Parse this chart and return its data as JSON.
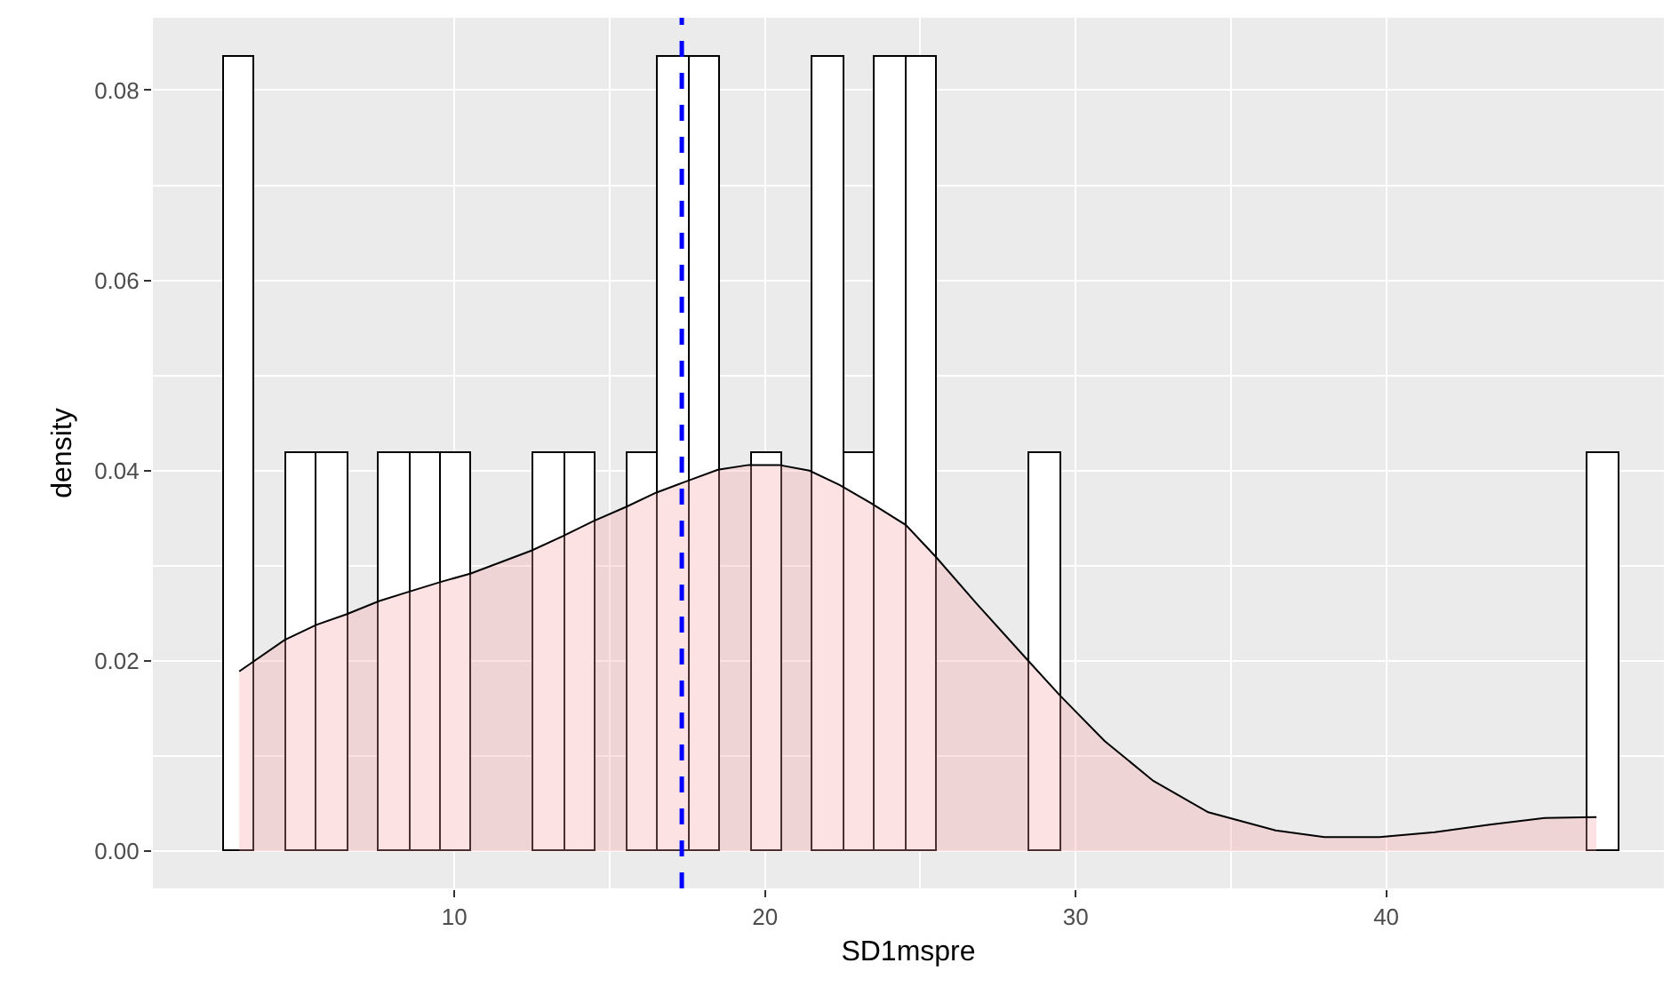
{
  "chart_data": {
    "type": "histogram",
    "xlabel": "SD1mspre",
    "ylabel": "density",
    "xlim": [
      0.29,
      48.94
    ],
    "ylim": [
      -0.0039,
      0.0876
    ],
    "xticks": [
      10,
      20,
      30,
      40
    ],
    "yticks": [
      {
        "value": 0,
        "label": "0.00"
      },
      {
        "value": 0.02,
        "label": "0.02"
      },
      {
        "value": 0.04,
        "label": "0.04"
      },
      {
        "value": 0.06,
        "label": "0.06"
      },
      {
        "value": 0.08,
        "label": "0.08"
      }
    ],
    "grid": true,
    "series": [
      {
        "type": "histogram",
        "color": "#ffffff",
        "bins": [
          2.58,
          3.58,
          4.58,
          5.57,
          6.57,
          7.57,
          8.57,
          9.57,
          10.56,
          11.56,
          12.56,
          13.56,
          14.56,
          15.55,
          16.55,
          17.55,
          18.55,
          19.55,
          20.54,
          21.54,
          22.54,
          23.54,
          24.54,
          25.53,
          26.53,
          27.53,
          28.53,
          29.53,
          30.52,
          31.52,
          32.52,
          33.52,
          34.52,
          35.51,
          36.51,
          37.51,
          38.51,
          39.51,
          40.5,
          41.5,
          42.5,
          43.5,
          44.5,
          45.49,
          46.49,
          47.49
        ],
        "values": [
          0.0835,
          0,
          0.0418,
          0.0418,
          0,
          0.0418,
          0.0418,
          0.0418,
          0,
          0,
          0.0418,
          0.0418,
          0,
          0.0418,
          0.0835,
          0.0835,
          0,
          0.0418,
          0,
          0.0835,
          0.0418,
          0.0835,
          0.0835,
          0,
          0,
          0,
          0.0418,
          0,
          0,
          0,
          0,
          0,
          0,
          0,
          0,
          0,
          0,
          0,
          0,
          0,
          0,
          0,
          0,
          0,
          0.0418
        ]
      },
      {
        "type": "area",
        "color": "#f8a0a4",
        "x": [
          3.07,
          4.53,
          5.55,
          6.52,
          7.58,
          8.55,
          9.55,
          10.53,
          12.48,
          13.48,
          14.47,
          15.53,
          16.5,
          17.48,
          18.48,
          19.47,
          20.45,
          21.43,
          22.4,
          23.4,
          24.53,
          25.51,
          26.79,
          28.48,
          29.49,
          30.93,
          32.5,
          34.27,
          36.44,
          38.01,
          39.78,
          41.56,
          43.33,
          45.1,
          46.77
        ],
        "values": [
          0.0189,
          0.0222,
          0.0238,
          0.0249,
          0.0263,
          0.0273,
          0.0283,
          0.0292,
          0.0316,
          0.0331,
          0.0347,
          0.0362,
          0.0377,
          0.0389,
          0.0401,
          0.0406,
          0.0406,
          0.04,
          0.0385,
          0.0366,
          0.0343,
          0.0309,
          0.0261,
          0.02,
          0.0164,
          0.0116,
          0.0074,
          0.0041,
          0.0022,
          0.0015,
          0.0015,
          0.002,
          0.0028,
          0.0035,
          0.0036
        ]
      }
    ],
    "ref_lines": [
      {
        "axis": "x",
        "value": 17.32,
        "color": "#0000ff",
        "line_style": "dashed"
      }
    ]
  }
}
